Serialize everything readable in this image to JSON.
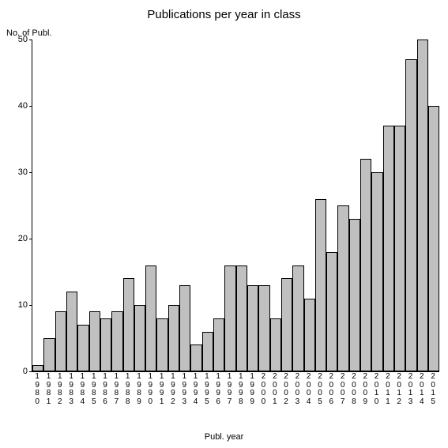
{
  "chart": {
    "type": "bar",
    "title": "Publications per year in class",
    "title_fontsize": 15,
    "y_axis_label": "No. of Publ.",
    "x_axis_label": "Publ. year",
    "label_fontsize": 11,
    "tick_fontsize": 11,
    "x_tick_fontsize": 10,
    "background_color": "#ffffff",
    "bar_fill_color": "#c0c0c0",
    "bar_border_color": "#000000",
    "axis_color": "#000000",
    "text_color": "#000000",
    "ylim": [
      0,
      50
    ],
    "y_ticks": [
      0,
      10,
      20,
      30,
      40,
      50
    ],
    "categories": [
      "1980",
      "1981",
      "1982",
      "1983",
      "1984",
      "1985",
      "1986",
      "1987",
      "1988",
      "1989",
      "1990",
      "1991",
      "1992",
      "1993",
      "1994",
      "1995",
      "1996",
      "1997",
      "1998",
      "1999",
      "2000",
      "2001",
      "2002",
      "2003",
      "2004",
      "2005",
      "2006",
      "2007",
      "2008",
      "2009",
      "2010",
      "2011",
      "2012",
      "2013",
      "2014",
      "2015"
    ],
    "values": [
      1,
      5,
      9,
      12,
      7,
      9,
      8,
      9,
      14,
      10,
      16,
      8,
      10,
      13,
      4,
      6,
      8,
      16,
      16,
      13,
      13,
      8,
      14,
      16,
      11,
      26,
      18,
      25,
      23,
      32,
      30,
      37,
      37,
      47,
      50,
      40
    ],
    "bar_width": 1.0
  }
}
